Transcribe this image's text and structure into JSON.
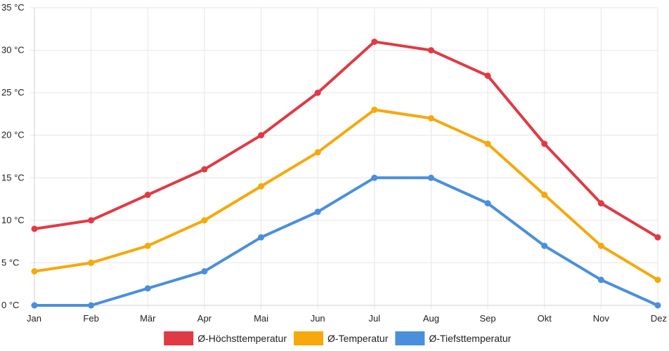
{
  "chart_data": {
    "type": "line",
    "categories": [
      "Jan",
      "Feb",
      "Mär",
      "Apr",
      "Mai",
      "Jun",
      "Jul",
      "Aug",
      "Sep",
      "Okt",
      "Nov",
      "Dez"
    ],
    "ylim": [
      0,
      35
    ],
    "ytick_values": [
      0,
      5,
      10,
      15,
      20,
      25,
      30,
      35
    ],
    "ytick_labels": [
      "0 °C",
      "5 °C",
      "10 °C",
      "15 °C",
      "20 °C",
      "25 °C",
      "30 °C",
      "35 °C"
    ],
    "grid": true,
    "legend_position": "bottom",
    "series": [
      {
        "name": "Ø-Höchsttemperatur",
        "color": "#e03a45",
        "values": [
          9,
          10,
          13,
          16,
          20,
          25,
          31,
          30,
          27,
          19,
          12,
          8
        ]
      },
      {
        "name": "Ø-Temperatur",
        "color": "#f6a80c",
        "values": [
          4,
          5,
          7,
          10,
          14,
          18,
          23,
          22,
          19,
          13,
          7,
          3
        ]
      },
      {
        "name": "Ø-Tiefsttemperatur",
        "color": "#4a8fdb",
        "values": [
          0,
          0,
          2,
          4,
          8,
          11,
          15,
          15,
          12,
          7,
          3,
          0
        ]
      }
    ]
  }
}
